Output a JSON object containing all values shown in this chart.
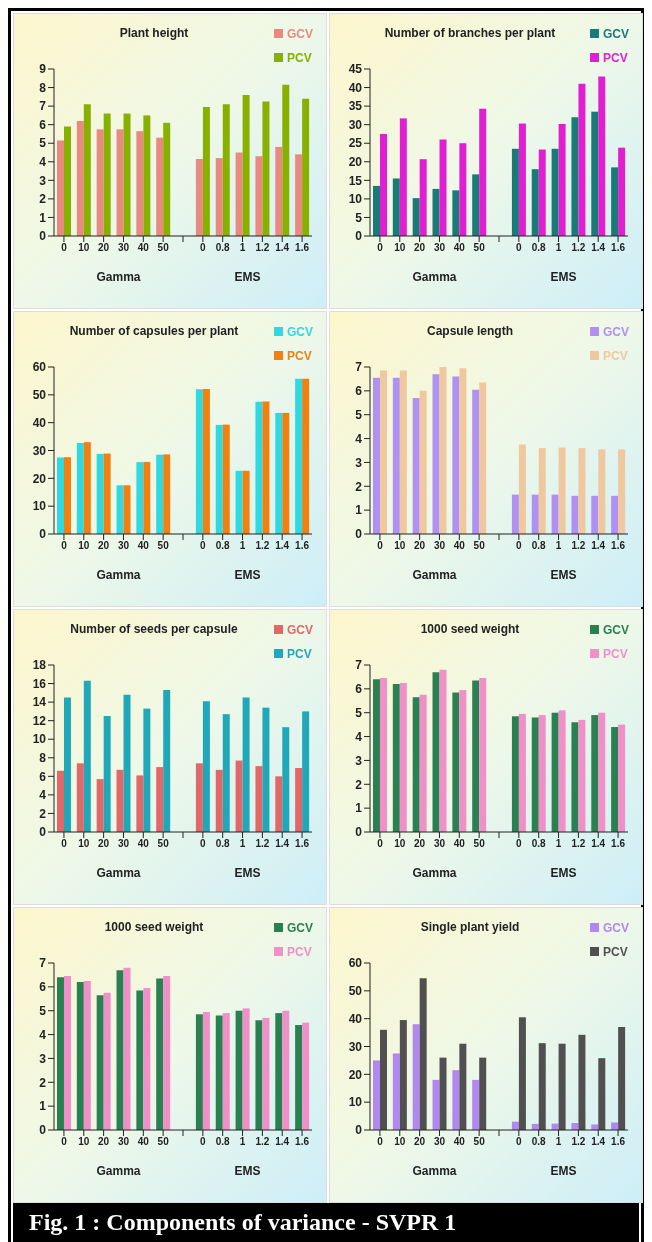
{
  "chart_data": [
    {
      "type": "bar",
      "title": "Plant height",
      "categories": [
        "0",
        "10",
        "20",
        "30",
        "40",
        "50",
        null,
        "0",
        "0.8",
        "1",
        "1.2",
        "1.4",
        "1.6"
      ],
      "ylim": [
        0,
        9
      ],
      "yticks": [
        0,
        1,
        2,
        3,
        4,
        5,
        6,
        7,
        8,
        9
      ],
      "legend": "top right",
      "annotations": [
        "Gamma",
        "EMS"
      ],
      "series": [
        {
          "name": "GCV",
          "color": "#e88a80",
          "values": [
            5.15,
            6.2,
            5.75,
            5.75,
            5.65,
            5.3,
            null,
            4.15,
            4.2,
            4.5,
            4.3,
            4.8,
            4.4
          ]
        },
        {
          "name": "PCV",
          "color": "#88b000",
          "values": [
            5.9,
            7.1,
            6.6,
            6.6,
            6.5,
            6.1,
            null,
            6.95,
            7.1,
            7.6,
            7.25,
            8.15,
            7.4
          ]
        }
      ]
    },
    {
      "type": "bar",
      "title": "Number of branches  per plant",
      "categories": [
        "0",
        "10",
        "20",
        "30",
        "40",
        "50",
        null,
        "0",
        "0.8",
        "1",
        "1.2",
        "1.4",
        "1.6"
      ],
      "ylim": [
        0,
        45
      ],
      "yticks": [
        0,
        5,
        10,
        15,
        20,
        25,
        30,
        35,
        40,
        45
      ],
      "legend": "top right",
      "annotations": [
        "Gamma",
        "EMS"
      ],
      "series": [
        {
          "name": "GCV",
          "color": "#1a7a78",
          "values": [
            13.5,
            15.5,
            10.2,
            12.7,
            12.3,
            16.6,
            null,
            23.5,
            18,
            23.5,
            32,
            33.5,
            18.5
          ]
        },
        {
          "name": "PCV",
          "color": "#e020d0",
          "values": [
            27.5,
            31.7,
            20.7,
            26,
            25,
            34.3,
            null,
            30.3,
            23.3,
            30.2,
            41,
            43,
            23.8
          ]
        }
      ]
    },
    {
      "type": "bar",
      "title": "Number of capsules  per plant",
      "categories": [
        "0",
        "10",
        "20",
        "30",
        "40",
        "50",
        null,
        "0",
        "0.8",
        "1",
        "1.2",
        "1.4",
        "1.6"
      ],
      "ylim": [
        0,
        60
      ],
      "yticks": [
        0,
        10,
        20,
        30,
        40,
        50,
        60
      ],
      "legend": "top right",
      "annotations": [
        "Gamma",
        "EMS"
      ],
      "series": [
        {
          "name": "GCV",
          "color": "#30d8e0",
          "values": [
            27.5,
            32.7,
            28.8,
            17.5,
            25.8,
            28.5,
            null,
            52,
            39.2,
            22.7,
            47.5,
            43.5,
            55.8
          ]
        },
        {
          "name": "PCV",
          "color": "#f08010",
          "values": [
            27.6,
            33,
            28.9,
            17.5,
            25.9,
            28.6,
            null,
            52.1,
            39.3,
            22.7,
            47.6,
            43.5,
            55.8
          ]
        }
      ]
    },
    {
      "type": "bar",
      "title": "Capsule length",
      "categories": [
        "0",
        "10",
        "20",
        "30",
        "40",
        "50",
        null,
        "0",
        "0.8",
        "1",
        "1.2",
        "1.4",
        "1.6"
      ],
      "ylim": [
        0,
        7
      ],
      "yticks": [
        0,
        1,
        2,
        3,
        4,
        5,
        6,
        7
      ],
      "legend": "top right",
      "annotations": [
        "Gamma",
        "EMS"
      ],
      "series": [
        {
          "name": "GCV",
          "color": "#b090f0",
          "values": [
            6.55,
            6.55,
            5.7,
            6.7,
            6.6,
            6.05,
            null,
            1.65,
            1.65,
            1.65,
            1.6,
            1.6,
            1.6
          ]
        },
        {
          "name": "PCV",
          "color": "#f0c8a0",
          "values": [
            6.85,
            6.85,
            6.0,
            7.0,
            6.95,
            6.35,
            null,
            3.75,
            3.6,
            3.62,
            3.6,
            3.55,
            3.55
          ]
        }
      ]
    },
    {
      "type": "bar",
      "title": "Number of seeds  per capsule",
      "categories": [
        "0",
        "10",
        "20",
        "30",
        "40",
        "50",
        null,
        "0",
        "0.8",
        "1",
        "1.2",
        "1.4",
        "1.6"
      ],
      "ylim": [
        0,
        18
      ],
      "yticks": [
        0,
        2,
        4,
        6,
        8,
        10,
        12,
        14,
        16,
        18
      ],
      "legend": "top right",
      "annotations": [
        "Gamma",
        "EMS"
      ],
      "series": [
        {
          "name": "GCV",
          "color": "#e06868",
          "values": [
            6.6,
            7.4,
            5.7,
            6.7,
            6.1,
            7.0,
            null,
            7.4,
            6.7,
            7.7,
            7.1,
            6.0,
            6.9
          ]
        },
        {
          "name": "PCV",
          "color": "#20a8b8",
          "values": [
            14.5,
            16.3,
            12.5,
            14.8,
            13.3,
            15.3,
            null,
            14.1,
            12.7,
            14.5,
            13.4,
            11.3,
            13.0
          ]
        }
      ]
    },
    {
      "type": "bar",
      "title": "1000 seed weight",
      "categories": [
        "0",
        "10",
        "20",
        "30",
        "40",
        "50",
        null,
        "0",
        "0.8",
        "1",
        "1.2",
        "1.4",
        "1.6"
      ],
      "ylim": [
        0,
        7
      ],
      "yticks": [
        0,
        1,
        2,
        3,
        4,
        5,
        6,
        7
      ],
      "legend": "top right",
      "annotations": [
        "Gamma",
        "EMS"
      ],
      "series": [
        {
          "name": "GCV",
          "color": "#2a8050",
          "values": [
            6.4,
            6.2,
            5.65,
            6.7,
            5.85,
            6.35,
            null,
            4.85,
            4.8,
            5.0,
            4.6,
            4.9,
            4.4
          ]
        },
        {
          "name": "PCV",
          "color": "#f090c8",
          "values": [
            6.45,
            6.25,
            5.75,
            6.8,
            5.95,
            6.45,
            null,
            4.95,
            4.9,
            5.1,
            4.7,
            5.0,
            4.5
          ]
        }
      ]
    },
    {
      "type": "bar",
      "title": "1000 seed weight",
      "categories": [
        "0",
        "10",
        "20",
        "30",
        "40",
        "50",
        null,
        "0",
        "0.8",
        "1",
        "1.2",
        "1.4",
        "1.6"
      ],
      "ylim": [
        0,
        7
      ],
      "yticks": [
        0,
        1,
        2,
        3,
        4,
        5,
        6,
        7
      ],
      "legend": "top right",
      "annotations": [
        "Gamma",
        "EMS"
      ],
      "series": [
        {
          "name": "GCV",
          "color": "#2a8050",
          "values": [
            6.4,
            6.2,
            5.65,
            6.7,
            5.85,
            6.35,
            null,
            4.85,
            4.8,
            5.0,
            4.6,
            4.9,
            4.4
          ]
        },
        {
          "name": "PCV",
          "color": "#f090c8",
          "values": [
            6.45,
            6.25,
            5.75,
            6.8,
            5.95,
            6.45,
            null,
            4.95,
            4.9,
            5.1,
            4.7,
            5.0,
            4.5
          ]
        }
      ]
    },
    {
      "type": "bar",
      "title": "Single plant yield",
      "categories": [
        "0",
        "10",
        "20",
        "30",
        "40",
        "50",
        null,
        "0",
        "0.8",
        "1",
        "1.2",
        "1.4",
        "1.6"
      ],
      "ylim": [
        0,
        60
      ],
      "yticks": [
        0,
        10,
        20,
        30,
        40,
        50,
        60
      ],
      "legend": "top right",
      "annotations": [
        "Gamma",
        "EMS",
        "Fig. 1 : Components of variance - SVPR 1"
      ],
      "series": [
        {
          "name": "GCV",
          "color": "#b088f0",
          "values": [
            25,
            27.5,
            38,
            18,
            21.5,
            18,
            null,
            3,
            2.2,
            2.3,
            2.5,
            2,
            2.7
          ]
        },
        {
          "name": "PCV",
          "color": "#505050",
          "values": [
            36,
            39.5,
            54.5,
            26,
            31,
            26,
            null,
            40.5,
            31.2,
            31,
            34.2,
            25.8,
            37
          ]
        }
      ]
    }
  ]
}
